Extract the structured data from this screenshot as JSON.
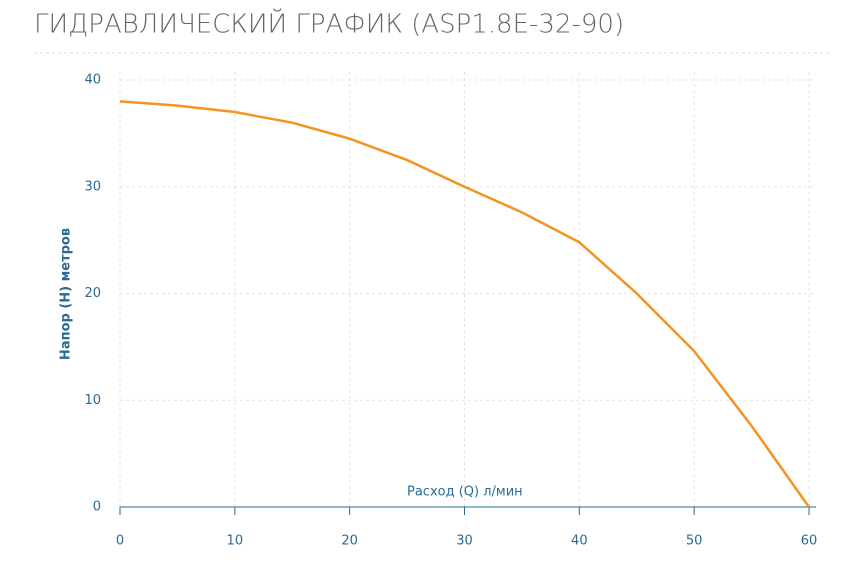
{
  "chart_data": {
    "type": "line",
    "title": "ГИДРАВЛИЧЕСКИЙ ГРАФИК (ASP1.8E-32-90)",
    "x_label": "Расход (Q) л/мин",
    "y_label": "Напор (H) метров",
    "x": [
      0,
      5,
      10,
      15,
      20,
      25,
      30,
      35,
      40,
      45,
      50,
      55,
      60
    ],
    "series": [
      {
        "name": "ASP1.8E-32-90",
        "color": "#f39420",
        "values": [
          38,
          37.6,
          37,
          36,
          34.5,
          32.5,
          30,
          27.6,
          24.8,
          20,
          14.6,
          7.6,
          0
        ]
      }
    ],
    "xlim": [
      0,
      60
    ],
    "xticks": [
      0,
      10,
      20,
      30,
      40,
      50,
      60
    ],
    "ylim": [
      0,
      40
    ],
    "yticks": [
      0,
      10,
      20,
      30,
      40
    ],
    "grid": true
  }
}
